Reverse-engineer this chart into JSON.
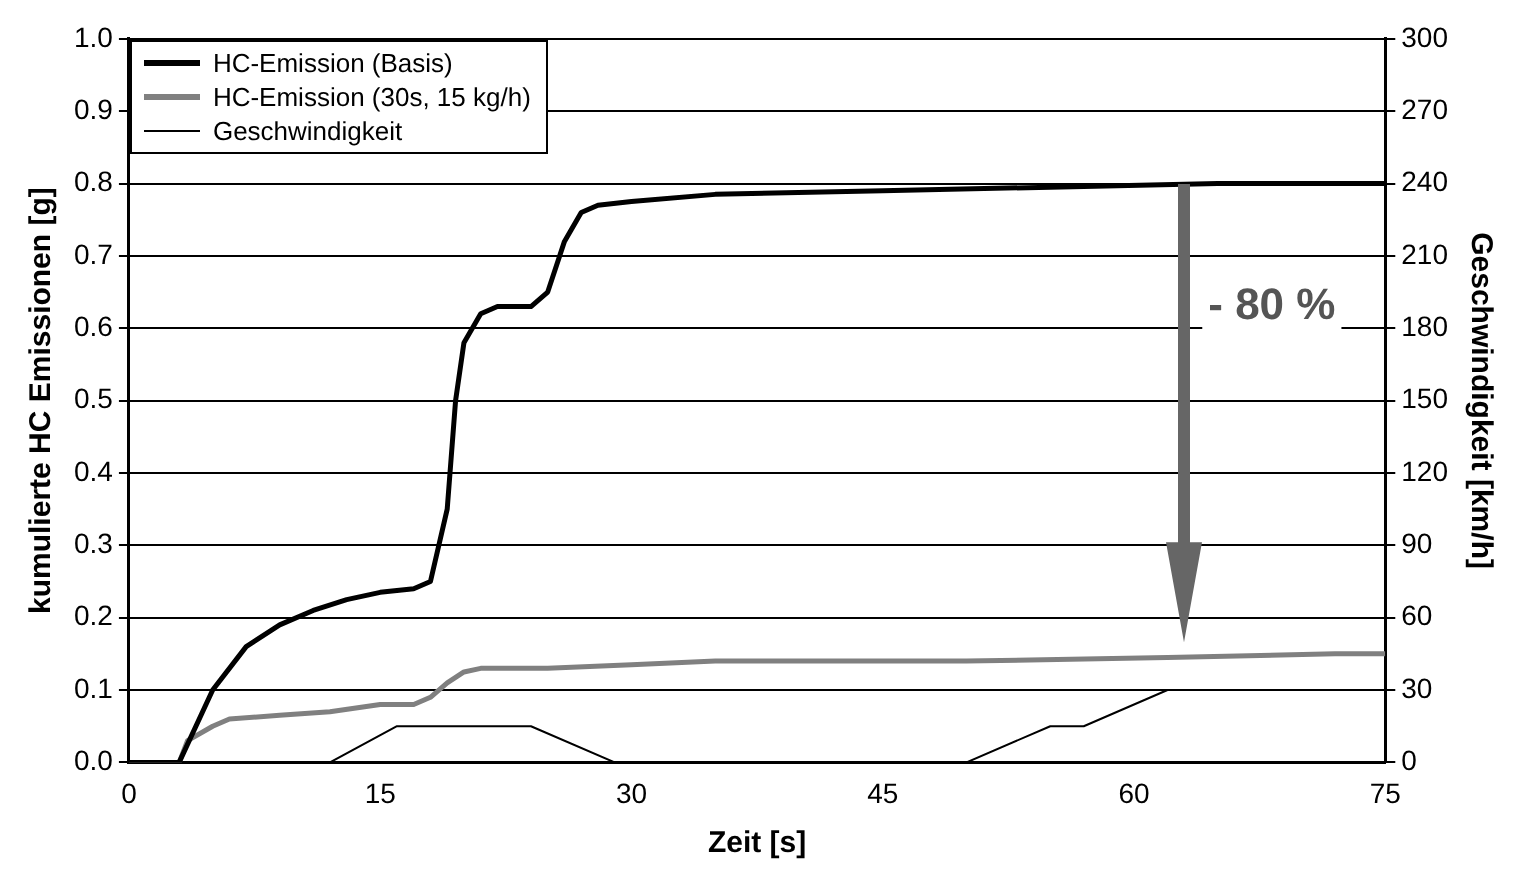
{
  "chart_data": {
    "type": "line",
    "xlabel": "Zeit [s]",
    "ylabel": "kumulierte HC Emissionen [g]",
    "y2label": "Geschwindigkeit [km/h]",
    "xlim": [
      0,
      75
    ],
    "xticks": [
      0,
      15,
      30,
      45,
      60,
      75
    ],
    "ylim": [
      0,
      1
    ],
    "yticks": [
      {
        "value": 0,
        "label": "0.0"
      },
      0.1,
      0.2,
      0.3,
      0.4,
      0.5,
      0.6,
      0.7,
      0.8,
      0.9,
      {
        "value": 1,
        "label": "1.0"
      }
    ],
    "y2lim": [
      0,
      300
    ],
    "y2ticks": [
      0,
      30,
      60,
      90,
      120,
      150,
      180,
      210,
      240,
      270,
      300
    ],
    "grid": "y",
    "legend": "top left",
    "marker": "none",
    "annotations": [
      "- 80 %"
    ],
    "series": [
      {
        "name": "HC-Emission (Basis)",
        "color": "#000000",
        "x": [
          0,
          3,
          5,
          7,
          9,
          11,
          13,
          15,
          17,
          18,
          19,
          19.5,
          20,
          21,
          22,
          24,
          25,
          26,
          27,
          28,
          30,
          35,
          45,
          55,
          65,
          75
        ],
        "values": [
          0,
          0,
          0.1,
          0.16,
          0.19,
          0.21,
          0.225,
          0.235,
          0.24,
          0.25,
          0.35,
          0.5,
          0.58,
          0.62,
          0.63,
          0.63,
          0.65,
          0.72,
          0.76,
          0.77,
          0.775,
          0.785,
          0.79,
          0.795,
          0.8,
          0.8
        ]
      },
      {
        "name": "HC-Emission (30s, 15 kg/h)",
        "color": "#808080",
        "x": [
          0,
          3,
          3.5,
          5,
          6,
          9,
          12,
          15,
          17,
          18,
          19,
          20,
          21,
          25,
          30,
          35,
          50,
          62,
          72,
          75
        ],
        "values": [
          0,
          0,
          0.03,
          0.05,
          0.06,
          0.065,
          0.07,
          0.08,
          0.08,
          0.09,
          0.11,
          0.125,
          0.13,
          0.13,
          0.135,
          0.14,
          0.14,
          0.145,
          0.15,
          0.15
        ]
      },
      {
        "name": "Geschwindigkeit",
        "color": "#000000",
        "axis": "y2",
        "x": [
          0,
          12,
          16,
          24,
          29,
          50,
          55,
          57,
          62,
          75
        ],
        "values": [
          0,
          0,
          15,
          15,
          0,
          0,
          15,
          15,
          30,
          30
        ]
      }
    ]
  }
}
